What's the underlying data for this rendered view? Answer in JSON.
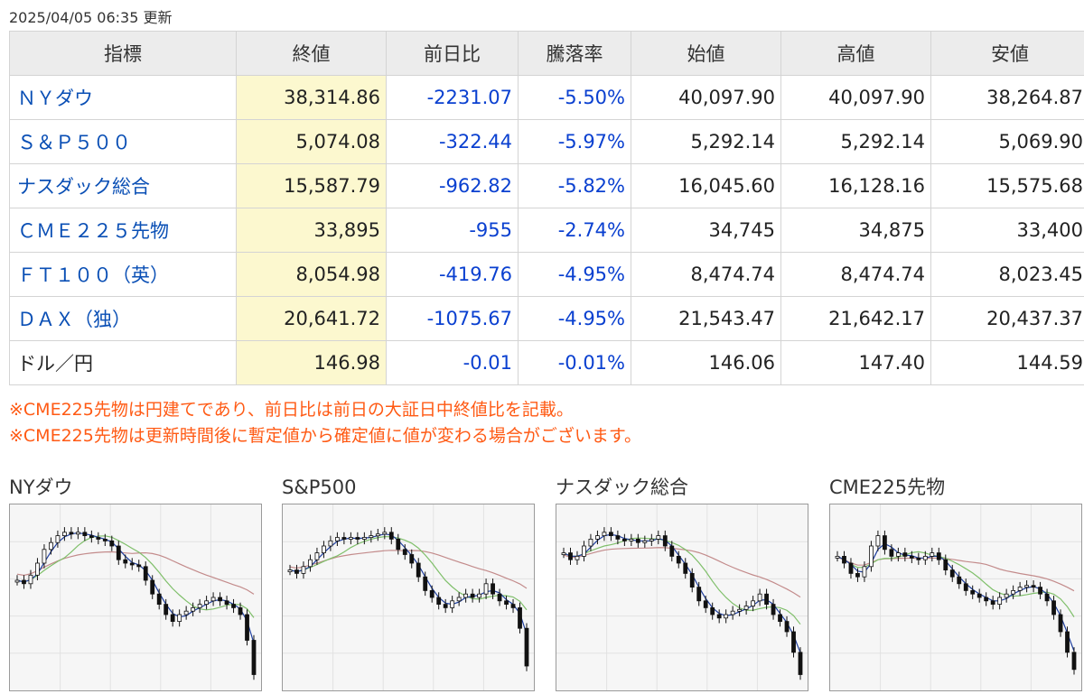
{
  "updated_text": "2025/04/05 06:35 更新",
  "table": {
    "headers": [
      "指標",
      "終値",
      "前日比",
      "騰落率",
      "始値",
      "高値",
      "安値"
    ],
    "rows": [
      {
        "name": "ＮＹダウ",
        "link": true,
        "close": "38,314.86",
        "change": "-2231.07",
        "rate": "-5.50%",
        "open": "40,097.90",
        "high": "40,097.90",
        "low": "38,264.87"
      },
      {
        "name": "Ｓ＆Ｐ５００",
        "link": true,
        "close": "5,074.08",
        "change": "-322.44",
        "rate": "-5.97%",
        "open": "5,292.14",
        "high": "5,292.14",
        "low": "5,069.90"
      },
      {
        "name": "ナスダック総合",
        "link": true,
        "close": "15,587.79",
        "change": "-962.82",
        "rate": "-5.82%",
        "open": "16,045.60",
        "high": "16,128.16",
        "low": "15,575.68"
      },
      {
        "name": "ＣＭＥ２２５先物",
        "link": true,
        "close": "33,895",
        "change": "-955",
        "rate": "-2.74%",
        "open": "34,745",
        "high": "34,875",
        "low": "33,400"
      },
      {
        "name": "ＦＴ１００（英）",
        "link": true,
        "close": "8,054.98",
        "change": "-419.76",
        "rate": "-4.95%",
        "open": "8,474.74",
        "high": "8,474.74",
        "low": "8,023.45"
      },
      {
        "name": "ＤＡＸ（独）",
        "link": true,
        "close": "20,641.72",
        "change": "-1075.67",
        "rate": "-4.95%",
        "open": "21,543.47",
        "high": "21,642.17",
        "low": "20,437.37"
      },
      {
        "name": "ドル／円",
        "link": false,
        "close": "146.98",
        "change": "-0.01",
        "rate": "-0.01%",
        "open": "146.06",
        "high": "147.40",
        "low": "144.59"
      }
    ]
  },
  "notes": [
    "※CME225先物は円建てであり、前日比は前日の大証日中終値比を記載。",
    "※CME225先物は更新時間後に暫定値から確定値に値が変わる場合がございます。"
  ],
  "colors": {
    "link": "#0a4fb5",
    "negative": "#0a40d0",
    "note": "#ff5a14",
    "close_bg": "#fcf8cf",
    "header_bg": "#ececec",
    "ma_short": "#1f3f9e",
    "ma_mid": "#7fbf6a",
    "ma_long": "#c38b8b",
    "candle": "#111111"
  },
  "charts": [
    {
      "title": "NYダウ",
      "trend": [
        0.6,
        0.58,
        0.63,
        0.7,
        0.78,
        0.82,
        0.86,
        0.88,
        0.87,
        0.88,
        0.86,
        0.85,
        0.84,
        0.83,
        0.8,
        0.72,
        0.7,
        0.69,
        0.68,
        0.6,
        0.52,
        0.46,
        0.4,
        0.36,
        0.4,
        0.42,
        0.44,
        0.46,
        0.48,
        0.5,
        0.48,
        0.46,
        0.44,
        0.4,
        0.25,
        0.05
      ]
    },
    {
      "title": "S&P500",
      "trend": [
        0.66,
        0.64,
        0.68,
        0.72,
        0.76,
        0.8,
        0.83,
        0.85,
        0.84,
        0.85,
        0.84,
        0.85,
        0.86,
        0.87,
        0.88,
        0.84,
        0.78,
        0.75,
        0.7,
        0.62,
        0.54,
        0.5,
        0.46,
        0.44,
        0.48,
        0.5,
        0.52,
        0.5,
        0.52,
        0.58,
        0.52,
        0.48,
        0.46,
        0.44,
        0.32,
        0.1
      ]
    },
    {
      "title": "ナスダック総合",
      "trend": [
        0.76,
        0.72,
        0.74,
        0.8,
        0.84,
        0.86,
        0.88,
        0.86,
        0.84,
        0.83,
        0.84,
        0.82,
        0.83,
        0.84,
        0.86,
        0.8,
        0.74,
        0.7,
        0.64,
        0.56,
        0.48,
        0.44,
        0.4,
        0.38,
        0.4,
        0.42,
        0.43,
        0.45,
        0.48,
        0.52,
        0.46,
        0.4,
        0.36,
        0.3,
        0.18,
        0.05
      ]
    },
    {
      "title": "CME225先物",
      "trend": [
        0.74,
        0.7,
        0.64,
        0.62,
        0.68,
        0.8,
        0.86,
        0.78,
        0.74,
        0.76,
        0.74,
        0.73,
        0.72,
        0.74,
        0.76,
        0.72,
        0.66,
        0.62,
        0.58,
        0.54,
        0.52,
        0.5,
        0.48,
        0.46,
        0.5,
        0.52,
        0.54,
        0.56,
        0.57,
        0.56,
        0.52,
        0.48,
        0.4,
        0.3,
        0.18,
        0.08
      ]
    }
  ]
}
